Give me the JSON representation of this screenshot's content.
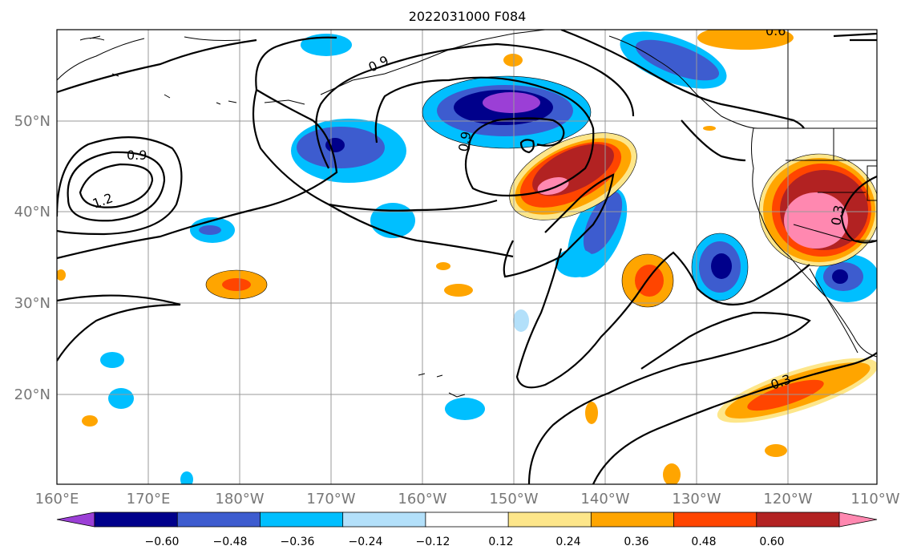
{
  "title": "2022031000 F084",
  "x_tick_labels": [
    "160°E",
    "170°E",
    "180°W",
    "170°W",
    "160°W",
    "150°W",
    "140°W",
    "130°W",
    "120°W",
    "110°W"
  ],
  "y_tick_labels": [
    "50°N",
    "40°N",
    "30°N",
    "20°N"
  ],
  "contour_labels": [
    "0.9",
    "1.2",
    "0.9",
    "0.9",
    "0.3",
    "0.3",
    "0.6"
  ],
  "colorbar": {
    "tick_labels": [
      "−0.60",
      "−0.48",
      "−0.36",
      "−0.24",
      "−0.12",
      "0.12",
      "0.24",
      "0.36",
      "0.48",
      "0.60"
    ],
    "colors": [
      "#9b3fd6",
      "#00008b",
      "#3d5ccf",
      "#00bfff",
      "#b3e0fa",
      "#ffffff",
      "#fde68a",
      "#ffa500",
      "#ff4500",
      "#b22222",
      "#ff88b0"
    ]
  },
  "map_extent": {
    "lon": [
      "160°E",
      "110°W"
    ],
    "lat": [
      "10°N",
      "60°N"
    ]
  },
  "shading_colors": {
    "purple": "#9b3fd6",
    "navy": "#00008b",
    "royal": "#3d5ccf",
    "sky": "#00bfff",
    "light_blue": "#b3e0fa",
    "pale_yellow": "#fde68a",
    "orange": "#ffa500",
    "red_orange": "#ff4500",
    "dark_red": "#b22222",
    "pink": "#ff88b0"
  }
}
